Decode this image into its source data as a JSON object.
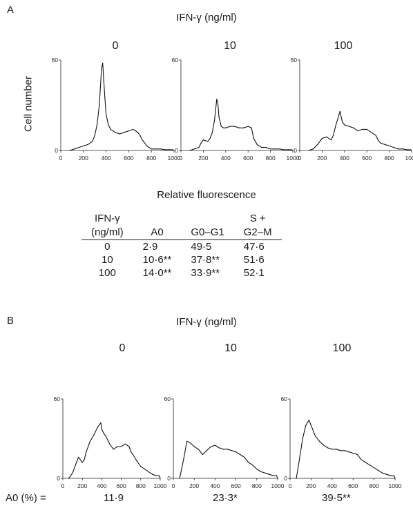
{
  "panel_a": {
    "letter": "A",
    "treatment_header": "IFN-γ (ng/ml)",
    "dose_labels": [
      "0",
      "10",
      "100"
    ],
    "ylabel": "Cell number",
    "xlabel": "Relative fluorescence",
    "table": {
      "col_headers": [
        [
          "IFN-γ",
          "(ng/ml)"
        ],
        [
          "",
          "A0"
        ],
        [
          "",
          "G0–G1"
        ],
        [
          "S +",
          "G2–M"
        ]
      ],
      "rows": [
        [
          "0",
          "2·9",
          "49·5",
          "47·6"
        ],
        [
          "10",
          "10·6**",
          "37·8**",
          "51·6"
        ],
        [
          "100",
          "14·0**",
          "33·9**",
          "52·1"
        ]
      ]
    }
  },
  "panel_b": {
    "letter": "B",
    "treatment_header": "IFN-γ (ng/ml)",
    "dose_labels": [
      "0",
      "10",
      "100"
    ],
    "a0_label": "A0 (%) =",
    "a0_values": [
      "11·9",
      "23·3*",
      "39·5**"
    ]
  },
  "chart_data": [
    {
      "type": "line",
      "panel": "A",
      "series_label": "0",
      "xlim": [
        0,
        1000
      ],
      "ylim": [
        0,
        60
      ],
      "x_ticks": [
        "0",
        "200",
        "400",
        "600",
        "800",
        "1000"
      ],
      "y_ticks": [
        "0",
        "60"
      ],
      "x": [
        80,
        120,
        160,
        200,
        240,
        280,
        300,
        320,
        340,
        360,
        370,
        380,
        390,
        400,
        420,
        440,
        480,
        520,
        560,
        600,
        640,
        660,
        680,
        700,
        720,
        740,
        760,
        780,
        800,
        840,
        880,
        920,
        960,
        990,
        1000
      ],
      "y": [
        0,
        1,
        2,
        3,
        4,
        6,
        10,
        17,
        30,
        54,
        58,
        46,
        34,
        24,
        17,
        14,
        12,
        11,
        12,
        13,
        14,
        13,
        12,
        10,
        7,
        5,
        3,
        2,
        1,
        1,
        1,
        0.5,
        0.5,
        0.5,
        0
      ]
    },
    {
      "type": "line",
      "panel": "A",
      "series_label": "10",
      "xlim": [
        0,
        1000
      ],
      "ylim": [
        0,
        60
      ],
      "x_ticks": [
        "0",
        "200",
        "400",
        "600",
        "800",
        "1000"
      ],
      "y_ticks": [
        "0",
        "60"
      ],
      "x": [
        80,
        120,
        160,
        180,
        200,
        240,
        260,
        280,
        300,
        320,
        330,
        340,
        360,
        380,
        400,
        440,
        480,
        520,
        560,
        600,
        630,
        650,
        680,
        700,
        720,
        760,
        800,
        840,
        880,
        920,
        960,
        990,
        1000
      ],
      "y": [
        0,
        1,
        2,
        5,
        7,
        6,
        8,
        12,
        20,
        34,
        31,
        22,
        16,
        15,
        15,
        16,
        16,
        15,
        15,
        16,
        15,
        8,
        4,
        3,
        2,
        2,
        1,
        1,
        1,
        0.5,
        0.5,
        0.5,
        0
      ]
    },
    {
      "type": "line",
      "panel": "A",
      "series_label": "100",
      "xlim": [
        0,
        1000
      ],
      "ylim": [
        0,
        60
      ],
      "x_ticks": [
        "0",
        "200",
        "400",
        "600",
        "800",
        "1000"
      ],
      "y_ticks": [
        "0",
        "60"
      ],
      "x": [
        80,
        120,
        160,
        200,
        240,
        280,
        300,
        320,
        340,
        360,
        380,
        400,
        440,
        480,
        520,
        560,
        600,
        640,
        680,
        700,
        720,
        760,
        800,
        840,
        880,
        920,
        960,
        990,
        1000
      ],
      "y": [
        0,
        1,
        4,
        8,
        9,
        7,
        10,
        16,
        21,
        26,
        19,
        17,
        16,
        15,
        13,
        14,
        14,
        12,
        10,
        7,
        5,
        4,
        3,
        2,
        1,
        1,
        0.5,
        0.5,
        0
      ]
    },
    {
      "type": "line",
      "panel": "B",
      "series_label": "0",
      "xlim": [
        0,
        1000
      ],
      "ylim": [
        0,
        60
      ],
      "x_ticks": [
        "0",
        "200",
        "400",
        "600",
        "800",
        "1000"
      ],
      "y_ticks": [
        "0",
        "60"
      ],
      "x": [
        60,
        100,
        140,
        160,
        180,
        200,
        220,
        240,
        280,
        320,
        360,
        390,
        400,
        420,
        440,
        480,
        520,
        560,
        600,
        640,
        660,
        680,
        700,
        720,
        760,
        800,
        840,
        880,
        920,
        960,
        990,
        1000
      ],
      "y": [
        0,
        4,
        12,
        16,
        14,
        12,
        14,
        20,
        28,
        33,
        39,
        42,
        37,
        34,
        32,
        26,
        22,
        24,
        24,
        26,
        25,
        24,
        20,
        18,
        13,
        9,
        7,
        5,
        3,
        2,
        2,
        0
      ]
    },
    {
      "type": "line",
      "panel": "B",
      "series_label": "10",
      "xlim": [
        0,
        1000
      ],
      "ylim": [
        0,
        60
      ],
      "x_ticks": [
        "0",
        "200",
        "400",
        "600",
        "800",
        "1000"
      ],
      "y_ticks": [
        "0",
        "60"
      ],
      "x": [
        60,
        100,
        130,
        160,
        200,
        240,
        280,
        320,
        360,
        400,
        440,
        480,
        520,
        560,
        600,
        640,
        680,
        720,
        760,
        800,
        840,
        880,
        920,
        960,
        990,
        1000
      ],
      "y": [
        0,
        15,
        28,
        27,
        24,
        22,
        18,
        21,
        24,
        25,
        23,
        22,
        22,
        21,
        20,
        18,
        16,
        12,
        10,
        7,
        5,
        4,
        3,
        2,
        2,
        0
      ]
    },
    {
      "type": "line",
      "panel": "B",
      "series_label": "100",
      "xlim": [
        0,
        1000
      ],
      "ylim": [
        0,
        60
      ],
      "x_ticks": [
        "0",
        "200",
        "400",
        "600",
        "800",
        "1000"
      ],
      "y_ticks": [
        "0",
        "60"
      ],
      "x": [
        60,
        90,
        120,
        150,
        180,
        200,
        240,
        280,
        320,
        360,
        400,
        440,
        480,
        520,
        560,
        600,
        640,
        680,
        720,
        760,
        800,
        840,
        880,
        920,
        960,
        990,
        1000
      ],
      "y": [
        0,
        15,
        30,
        40,
        44,
        40,
        32,
        28,
        25,
        23,
        22,
        22,
        21,
        21,
        20,
        19,
        18,
        14,
        12,
        10,
        8,
        6,
        4,
        3,
        2,
        2,
        0
      ]
    }
  ]
}
